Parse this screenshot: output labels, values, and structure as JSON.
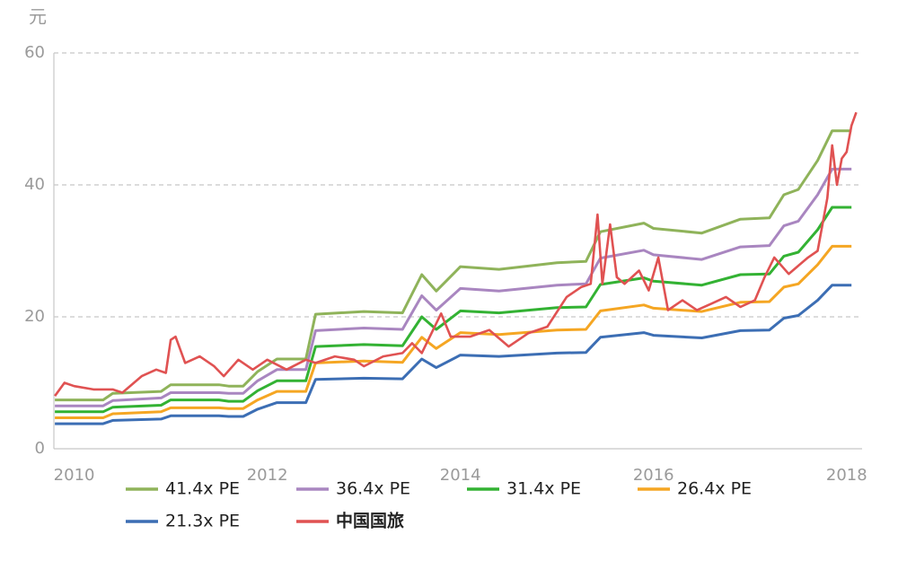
{
  "chart_data": {
    "type": "line",
    "y_label": "元",
    "xlim": [
      2009.79,
      2018.16
    ],
    "xticks": [
      2010,
      2012,
      2014,
      2016,
      2018
    ],
    "ylim": [
      0,
      60
    ],
    "yticks": [
      0,
      20,
      40,
      60
    ],
    "grid": true,
    "series": [
      {
        "name": "41.4x PE",
        "color": "#8fb35a",
        "x": [
          2009.8,
          2010.3,
          2010.4,
          2010.9,
          2011.0,
          2011.5,
          2011.6,
          2011.75,
          2011.9,
          2012.1,
          2012.4,
          2012.5,
          2013.0,
          2013.4,
          2013.6,
          2013.75,
          2014.0,
          2014.4,
          2015.0,
          2015.3,
          2015.45,
          2015.9,
          2016.0,
          2016.5,
          2016.9,
          2017.2,
          2017.35,
          2017.5,
          2017.7,
          2017.85,
          2018.05
        ],
        "values": [
          7.4,
          7.4,
          8.4,
          8.7,
          9.7,
          9.7,
          9.5,
          9.5,
          11.7,
          13.6,
          13.6,
          20.4,
          20.8,
          20.6,
          26.4,
          23.9,
          27.6,
          27.2,
          28.2,
          28.4,
          32.9,
          34.2,
          33.4,
          32.7,
          34.8,
          35.0,
          38.5,
          39.3,
          43.7,
          48.2,
          48.2
        ]
      },
      {
        "name": "36.4x PE",
        "color": "#a986c0",
        "x": [
          2009.8,
          2010.3,
          2010.4,
          2010.9,
          2011.0,
          2011.5,
          2011.6,
          2011.75,
          2011.9,
          2012.1,
          2012.4,
          2012.5,
          2013.0,
          2013.4,
          2013.6,
          2013.75,
          2014.0,
          2014.4,
          2015.0,
          2015.3,
          2015.45,
          2015.9,
          2016.0,
          2016.5,
          2016.9,
          2017.2,
          2017.35,
          2017.5,
          2017.7,
          2017.85,
          2018.05
        ],
        "values": [
          6.5,
          6.5,
          7.3,
          7.7,
          8.5,
          8.5,
          8.4,
          8.4,
          10.3,
          12.0,
          12.0,
          17.9,
          18.3,
          18.1,
          23.2,
          21.0,
          24.3,
          23.9,
          24.8,
          25.0,
          28.9,
          30.1,
          29.4,
          28.7,
          30.6,
          30.8,
          33.8,
          34.5,
          38.5,
          42.4,
          42.4
        ]
      },
      {
        "name": "31.4x PE",
        "color": "#33b233",
        "x": [
          2009.8,
          2010.3,
          2010.4,
          2010.9,
          2011.0,
          2011.5,
          2011.6,
          2011.75,
          2011.9,
          2012.1,
          2012.4,
          2012.5,
          2013.0,
          2013.4,
          2013.6,
          2013.75,
          2014.0,
          2014.4,
          2015.0,
          2015.3,
          2015.45,
          2015.9,
          2016.0,
          2016.5,
          2016.9,
          2017.2,
          2017.35,
          2017.5,
          2017.7,
          2017.85,
          2018.05
        ],
        "values": [
          5.6,
          5.6,
          6.3,
          6.6,
          7.4,
          7.4,
          7.2,
          7.2,
          8.8,
          10.3,
          10.3,
          15.5,
          15.8,
          15.6,
          20.0,
          18.1,
          20.9,
          20.6,
          21.4,
          21.5,
          24.9,
          25.9,
          25.4,
          24.8,
          26.4,
          26.5,
          29.2,
          29.8,
          33.2,
          36.6,
          36.6
        ]
      },
      {
        "name": "26.4x PE",
        "color": "#f5a623",
        "x": [
          2009.8,
          2010.3,
          2010.4,
          2010.9,
          2011.0,
          2011.5,
          2011.6,
          2011.75,
          2011.9,
          2012.1,
          2012.4,
          2012.5,
          2013.0,
          2013.4,
          2013.6,
          2013.75,
          2014.0,
          2014.4,
          2015.0,
          2015.3,
          2015.45,
          2015.9,
          2016.0,
          2016.5,
          2016.9,
          2017.2,
          2017.35,
          2017.5,
          2017.7,
          2017.85,
          2018.05
        ],
        "values": [
          4.7,
          4.7,
          5.3,
          5.6,
          6.2,
          6.2,
          6.1,
          6.1,
          7.4,
          8.7,
          8.7,
          13.0,
          13.3,
          13.1,
          16.9,
          15.2,
          17.6,
          17.3,
          18.0,
          18.1,
          20.9,
          21.8,
          21.3,
          20.8,
          22.2,
          22.3,
          24.5,
          25.0,
          27.9,
          30.7,
          30.7
        ]
      },
      {
        "name": "21.3x PE",
        "color": "#3c6eb4",
        "x": [
          2009.8,
          2010.3,
          2010.4,
          2010.9,
          2011.0,
          2011.5,
          2011.6,
          2011.75,
          2011.9,
          2012.1,
          2012.4,
          2012.5,
          2013.0,
          2013.4,
          2013.6,
          2013.75,
          2014.0,
          2014.4,
          2015.0,
          2015.3,
          2015.45,
          2015.9,
          2016.0,
          2016.5,
          2016.9,
          2017.2,
          2017.35,
          2017.5,
          2017.7,
          2017.85,
          2018.05
        ],
        "values": [
          3.8,
          3.8,
          4.3,
          4.5,
          5.0,
          5.0,
          4.9,
          4.9,
          6.0,
          7.0,
          7.0,
          10.5,
          10.7,
          10.6,
          13.6,
          12.3,
          14.2,
          14.0,
          14.5,
          14.6,
          16.9,
          17.6,
          17.2,
          16.8,
          17.9,
          18.0,
          19.8,
          20.2,
          22.5,
          24.8,
          24.8
        ]
      },
      {
        "name": "中国国旅",
        "color": "#e05252",
        "x": [
          2009.8,
          2009.9,
          2010.0,
          2010.2,
          2010.4,
          2010.5,
          2010.7,
          2010.85,
          2010.95,
          2011.0,
          2011.05,
          2011.15,
          2011.3,
          2011.45,
          2011.55,
          2011.7,
          2011.85,
          2012.0,
          2012.2,
          2012.4,
          2012.5,
          2012.7,
          2012.9,
          2013.0,
          2013.2,
          2013.4,
          2013.5,
          2013.6,
          2013.8,
          2013.9,
          2014.1,
          2014.3,
          2014.5,
          2014.7,
          2014.9,
          2015.1,
          2015.25,
          2015.35,
          2015.42,
          2015.47,
          2015.55,
          2015.62,
          2015.7,
          2015.85,
          2015.95,
          2016.05,
          2016.15,
          2016.3,
          2016.45,
          2016.6,
          2016.75,
          2016.9,
          2017.05,
          2017.15,
          2017.25,
          2017.4,
          2017.6,
          2017.7,
          2017.8,
          2017.85,
          2017.9,
          2017.95,
          2018.0,
          2018.05,
          2018.1
        ],
        "values": [
          8,
          10,
          9.5,
          9,
          9,
          8.5,
          11,
          12,
          11.5,
          16.5,
          17,
          13,
          14,
          12.5,
          11,
          13.5,
          12,
          13.5,
          12,
          13.5,
          13,
          14,
          13.5,
          12.5,
          14,
          14.5,
          16,
          14.5,
          20.5,
          17,
          17,
          18,
          15.5,
          17.5,
          18.5,
          23,
          24.5,
          25,
          35.5,
          25,
          34,
          26,
          25,
          27,
          24,
          29,
          21,
          22.5,
          21,
          22,
          23,
          21.5,
          22.5,
          26,
          29,
          26.5,
          29,
          30,
          38,
          46,
          40,
          44,
          45,
          49,
          51
        ]
      }
    ]
  }
}
